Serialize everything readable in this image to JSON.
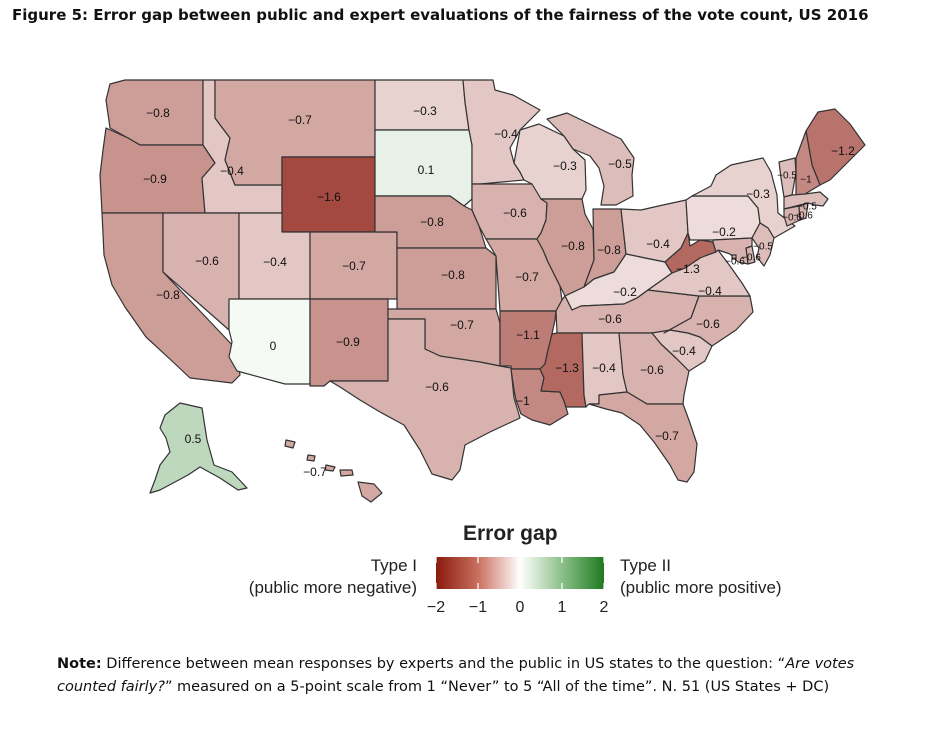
{
  "figure": {
    "title": "Figure 5: Error gap between public and expert evaluations of the fairness of the vote count, US 2016"
  },
  "legend": {
    "title": "Error gap",
    "left_label_line1": "Type I",
    "left_label_line2": "(public more negative)",
    "right_label_line1": "Type II",
    "right_label_line2": "(public more positive)",
    "ticks": [
      "−2",
      "−1",
      "0",
      "1",
      "2"
    ],
    "scale_min": -2,
    "scale_max": 2,
    "color_negative": "#8b1a0e",
    "color_zero": "#ffffff",
    "color_positive": "#1f7a1f"
  },
  "note": {
    "label": "Note:",
    "text1": " Difference between mean responses by experts and the public in US states to the question: “",
    "question": "Are votes counted fairly?",
    "text2": "” measured on a 5-point scale from 1 “Never” to 5 “All of the time”.  N. 51 (US States + DC)"
  },
  "chart_data": {
    "type": "choropleth",
    "title": "Figure 5: Error gap between public and expert evaluations of the fairness of the vote count, US 2016",
    "value_name": "Error gap",
    "states": [
      {
        "state": "WA",
        "label": "−0.8",
        "value": -0.8
      },
      {
        "state": "OR",
        "label": "−0.9",
        "value": -0.9
      },
      {
        "state": "CA",
        "label": "−0.8",
        "value": -0.8
      },
      {
        "state": "ID",
        "label": "−0.4",
        "value": -0.4
      },
      {
        "state": "NV",
        "label": "−0.6",
        "value": -0.6
      },
      {
        "state": "MT",
        "label": "−0.7",
        "value": -0.7
      },
      {
        "state": "WY",
        "label": "−1.6",
        "value": -1.6
      },
      {
        "state": "UT",
        "label": "−0.4",
        "value": -0.4
      },
      {
        "state": "AZ",
        "label": "0",
        "value": 0
      },
      {
        "state": "CO",
        "label": "−0.7",
        "value": -0.7
      },
      {
        "state": "NM",
        "label": "−0.9",
        "value": -0.9
      },
      {
        "state": "ND",
        "label": "−0.3",
        "value": -0.3
      },
      {
        "state": "SD",
        "label": "0.1",
        "value": 0.1
      },
      {
        "state": "NE",
        "label": "−0.8",
        "value": -0.8
      },
      {
        "state": "KS",
        "label": "−0.8",
        "value": -0.8
      },
      {
        "state": "OK",
        "label": "−0.7",
        "value": -0.7
      },
      {
        "state": "TX",
        "label": "−0.6",
        "value": -0.6
      },
      {
        "state": "MN",
        "label": "−0.4",
        "value": -0.4
      },
      {
        "state": "IA",
        "label": "−0.6",
        "value": -0.6
      },
      {
        "state": "MO",
        "label": "−0.7",
        "value": -0.7
      },
      {
        "state": "AR",
        "label": "−1.1",
        "value": -1.1
      },
      {
        "state": "LA",
        "label": "−1",
        "value": -1.0
      },
      {
        "state": "WI",
        "label": "−0.3",
        "value": -0.3
      },
      {
        "state": "MI",
        "label": "−0.5",
        "value": -0.5
      },
      {
        "state": "IL",
        "label": "−0.8",
        "value": -0.8
      },
      {
        "state": "IN",
        "label": "−0.8",
        "value": -0.8
      },
      {
        "state": "OH",
        "label": "−0.4",
        "value": -0.4
      },
      {
        "state": "KY",
        "label": "−0.2",
        "value": -0.2
      },
      {
        "state": "TN",
        "label": "−0.6",
        "value": -0.6
      },
      {
        "state": "MS",
        "label": "−1.3",
        "value": -1.3
      },
      {
        "state": "AL",
        "label": "−0.4",
        "value": -0.4
      },
      {
        "state": "GA",
        "label": "−0.6",
        "value": -0.6
      },
      {
        "state": "FL",
        "label": "−0.7",
        "value": -0.7
      },
      {
        "state": "SC",
        "label": "−0.4",
        "value": -0.4
      },
      {
        "state": "NC",
        "label": "−0.6",
        "value": -0.6
      },
      {
        "state": "VA",
        "label": "−0.4",
        "value": -0.4
      },
      {
        "state": "WV",
        "label": "−1.3",
        "value": -1.3
      },
      {
        "state": "PA",
        "label": "−0.2",
        "value": -0.2
      },
      {
        "state": "NY",
        "label": "−0.3",
        "value": -0.3
      },
      {
        "state": "ME",
        "label": "−1.2",
        "value": -1.2
      },
      {
        "state": "VT",
        "label": "−0.5",
        "value": -0.5
      },
      {
        "state": "NH",
        "label": "−1",
        "value": -1.0
      },
      {
        "state": "MA",
        "label": "−0.5",
        "value": -0.5
      },
      {
        "state": "CT",
        "label": "−0.6",
        "value": -0.6
      },
      {
        "state": "RI",
        "label": "−0.6",
        "value": -0.6
      },
      {
        "state": "NJ",
        "label": "−0.5",
        "value": -0.5
      },
      {
        "state": "DE",
        "label": "−0.6",
        "value": -0.6
      },
      {
        "state": "MD",
        "label": "−0.6",
        "value": -0.6
      },
      {
        "state": "DC",
        "label": "",
        "value": -0.6
      },
      {
        "state": "AK",
        "label": "0.5",
        "value": 0.5
      },
      {
        "state": "HI",
        "label": "−0.7",
        "value": -0.7
      }
    ]
  }
}
